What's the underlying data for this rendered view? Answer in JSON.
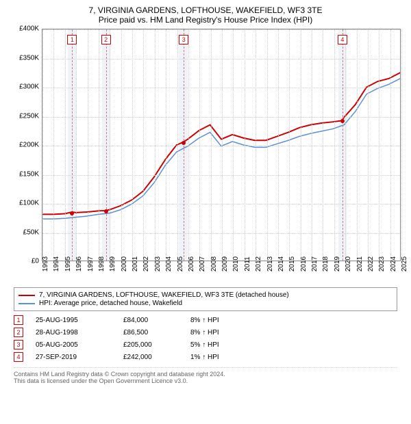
{
  "title_line1": "7, VIRGINIA GARDENS, LOFTHOUSE, WAKEFIELD, WF3 3TE",
  "title_line2": "Price paid vs. HM Land Registry's House Price Index (HPI)",
  "chart": {
    "type": "line",
    "ylim": [
      0,
      400000
    ],
    "ytick_step": 50000,
    "ytick_labels": [
      "£0",
      "£50K",
      "£100K",
      "£150K",
      "£200K",
      "£250K",
      "£300K",
      "£350K",
      "£400K"
    ],
    "x_years": [
      1993,
      1994,
      1995,
      1996,
      1997,
      1998,
      1999,
      2000,
      2001,
      2002,
      2003,
      2004,
      2005,
      2006,
      2007,
      2008,
      2009,
      2010,
      2011,
      2012,
      2013,
      2014,
      2015,
      2016,
      2017,
      2018,
      2019,
      2020,
      2021,
      2022,
      2023,
      2024,
      2025
    ],
    "background_color": "#ffffff",
    "grid_color": "#cccccc",
    "sale_band_color": "#eef3fa",
    "sale_dash_color": "#dd7777",
    "series": [
      {
        "name": "property",
        "label": "7, VIRGINIA GARDENS, LOFTHOUSE, WAKEFIELD, WF3 3TE (detached house)",
        "color": "#cc0000",
        "line_width": 2,
        "points": [
          [
            1993.0,
            80000
          ],
          [
            1994.0,
            80000
          ],
          [
            1995.0,
            81000
          ],
          [
            1995.65,
            84000
          ],
          [
            1996.0,
            83000
          ],
          [
            1997.0,
            84000
          ],
          [
            1998.0,
            86000
          ],
          [
            1998.66,
            86500
          ],
          [
            1999.0,
            88000
          ],
          [
            2000.0,
            95000
          ],
          [
            2001.0,
            105000
          ],
          [
            2002.0,
            120000
          ],
          [
            2003.0,
            145000
          ],
          [
            2004.0,
            175000
          ],
          [
            2005.0,
            200000
          ],
          [
            2005.6,
            205000
          ],
          [
            2006.0,
            210000
          ],
          [
            2007.0,
            225000
          ],
          [
            2008.0,
            235000
          ],
          [
            2009.0,
            210000
          ],
          [
            2010.0,
            218000
          ],
          [
            2011.0,
            212000
          ],
          [
            2012.0,
            208000
          ],
          [
            2013.0,
            208000
          ],
          [
            2014.0,
            215000
          ],
          [
            2015.0,
            222000
          ],
          [
            2016.0,
            230000
          ],
          [
            2017.0,
            235000
          ],
          [
            2018.0,
            238000
          ],
          [
            2019.0,
            240000
          ],
          [
            2019.74,
            242000
          ],
          [
            2020.0,
            248000
          ],
          [
            2021.0,
            270000
          ],
          [
            2022.0,
            300000
          ],
          [
            2023.0,
            310000
          ],
          [
            2024.0,
            315000
          ],
          [
            2025.0,
            325000
          ],
          [
            2025.5,
            330000
          ]
        ]
      },
      {
        "name": "hpi",
        "label": "HPI: Average price, detached house, Wakefield",
        "color": "#5b8fd6",
        "line_width": 1.5,
        "points": [
          [
            1993.0,
            72000
          ],
          [
            1994.0,
            72000
          ],
          [
            1995.0,
            73000
          ],
          [
            1996.0,
            75000
          ],
          [
            1997.0,
            77000
          ],
          [
            1998.0,
            80000
          ],
          [
            1999.0,
            82000
          ],
          [
            2000.0,
            88000
          ],
          [
            2001.0,
            98000
          ],
          [
            2002.0,
            112000
          ],
          [
            2003.0,
            135000
          ],
          [
            2004.0,
            165000
          ],
          [
            2005.0,
            188000
          ],
          [
            2006.0,
            198000
          ],
          [
            2007.0,
            212000
          ],
          [
            2008.0,
            222000
          ],
          [
            2009.0,
            198000
          ],
          [
            2010.0,
            206000
          ],
          [
            2011.0,
            200000
          ],
          [
            2012.0,
            196000
          ],
          [
            2013.0,
            196000
          ],
          [
            2014.0,
            202000
          ],
          [
            2015.0,
            208000
          ],
          [
            2016.0,
            215000
          ],
          [
            2017.0,
            220000
          ],
          [
            2018.0,
            224000
          ],
          [
            2019.0,
            228000
          ],
          [
            2020.0,
            235000
          ],
          [
            2021.0,
            258000
          ],
          [
            2022.0,
            288000
          ],
          [
            2023.0,
            298000
          ],
          [
            2024.0,
            305000
          ],
          [
            2025.0,
            315000
          ],
          [
            2025.5,
            320000
          ]
        ]
      }
    ],
    "sale_markers": [
      {
        "num": "1",
        "year": 1995.65,
        "price": 84000
      },
      {
        "num": "2",
        "year": 1998.66,
        "price": 86500
      },
      {
        "num": "3",
        "year": 2005.6,
        "price": 205000
      },
      {
        "num": "4",
        "year": 2019.74,
        "price": 242000
      }
    ],
    "marker_color": "#cc0000",
    "dot_color": "#cc0000"
  },
  "legend": {
    "items": [
      {
        "color": "#cc0000",
        "label": "7, VIRGINIA GARDENS, LOFTHOUSE, WAKEFIELD, WF3 3TE (detached house)"
      },
      {
        "color": "#5b8fd6",
        "label": "HPI: Average price, detached house, Wakefield"
      }
    ]
  },
  "sales_table": {
    "rows": [
      {
        "num": "1",
        "date": "25-AUG-1995",
        "price": "£84,000",
        "diff": "8% ↑ HPI"
      },
      {
        "num": "2",
        "date": "28-AUG-1998",
        "price": "£86,500",
        "diff": "8% ↑ HPI"
      },
      {
        "num": "3",
        "date": "05-AUG-2005",
        "price": "£205,000",
        "diff": "5% ↑ HPI"
      },
      {
        "num": "4",
        "date": "27-SEP-2019",
        "price": "£242,000",
        "diff": "1% ↑ HPI"
      }
    ]
  },
  "footnote_line1": "Contains HM Land Registry data © Crown copyright and database right 2024.",
  "footnote_line2": "This data is licensed under the Open Government Licence v3.0."
}
